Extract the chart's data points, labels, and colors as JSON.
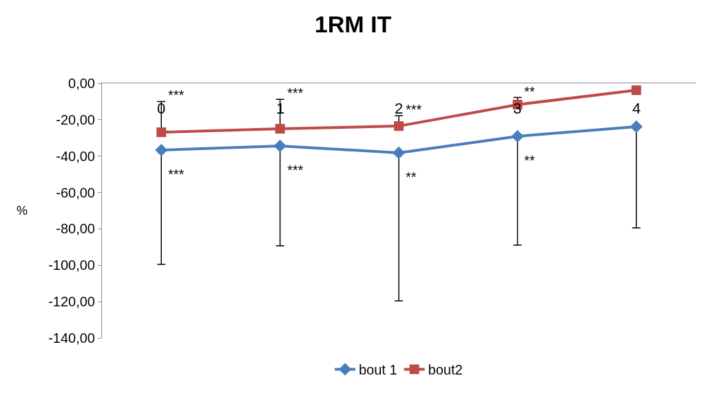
{
  "chart_data": {
    "type": "line",
    "title": "1RM IT",
    "ylabel": "%",
    "categories": [
      "0",
      "1",
      "2",
      "3",
      "4"
    ],
    "series": [
      {
        "name": "bout 1",
        "color": "#4a7ebb",
        "marker": "diamond",
        "values": [
          -36.7,
          -34.4,
          -38.2,
          -29.1,
          -23.8
        ],
        "errors": [
          [
            -99.5,
            -36.7
          ],
          [
            -89.3,
            -34.4
          ],
          [
            -119.6,
            -38.2
          ],
          [
            -88.9,
            -29.1
          ],
          [
            -79.5,
            -23.8
          ]
        ]
      },
      {
        "name": "bout2",
        "color": "#be4b48",
        "marker": "square",
        "values": [
          -26.9,
          -25.0,
          -23.5,
          -11.7,
          -3.8
        ],
        "errors": [
          [
            -26.9,
            -10.0
          ],
          [
            -25.0,
            -8.8
          ],
          [
            -23.5,
            -17.8
          ],
          [
            -11.7,
            -7.8
          ],
          null
        ]
      }
    ],
    "ylim": [
      -140,
      0
    ],
    "yticks": [
      {
        "value": -140,
        "label": "-140,00"
      },
      {
        "value": -120,
        "label": "-120,00"
      },
      {
        "value": -100,
        "label": "-100,00"
      },
      {
        "value": -80,
        "label": "-80,00"
      },
      {
        "value": -60,
        "label": "-60,00"
      },
      {
        "value": -40,
        "label": "-40,00"
      },
      {
        "value": -20,
        "label": "-20,00"
      },
      {
        "value": 0,
        "label": "0,00"
      }
    ],
    "annotations": [
      {
        "text": "***",
        "x": "0",
        "y": -10.0
      },
      {
        "text": "***",
        "x": "1",
        "y": -8.8
      },
      {
        "text": "***",
        "x": "2",
        "y": -17.8
      },
      {
        "text": "**",
        "x": "3",
        "y": -7.8
      },
      {
        "text": "***",
        "x": "0",
        "y": -36.7
      },
      {
        "text": "***",
        "x": "1",
        "y": -34.4
      },
      {
        "text": "**",
        "x": "2",
        "y": -38.2
      },
      {
        "text": "**",
        "x": "3",
        "y": -29.1
      }
    ],
    "legend": "bottom",
    "line_style": "solid"
  }
}
